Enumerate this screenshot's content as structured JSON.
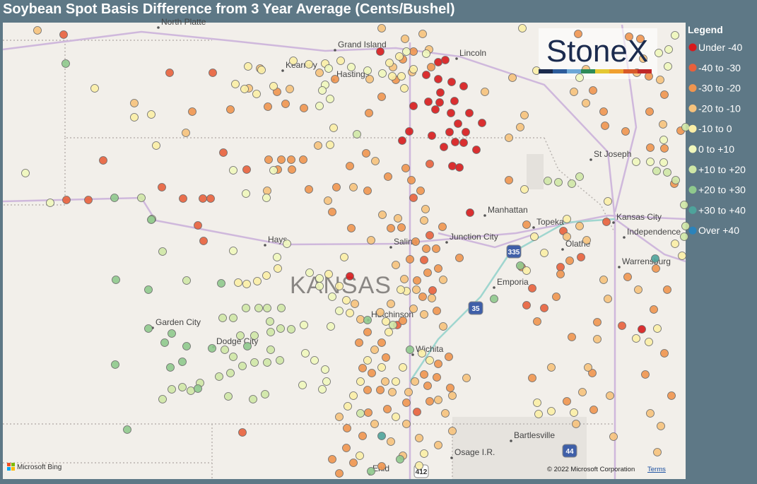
{
  "header": {
    "title": "Soybean Spot Basis Difference from 3 Year Average (Cents/Bushel)"
  },
  "legend": {
    "title": "Legend",
    "items": [
      {
        "label": "Under -40",
        "color": "#d7191c"
      },
      {
        "label": "-40 to -30",
        "color": "#e8603c"
      },
      {
        "label": "-30 to -20",
        "color": "#f0954f"
      },
      {
        "label": "-20 to -10",
        "color": "#f6c27c"
      },
      {
        "label": "-10 to 0",
        "color": "#fbeea6"
      },
      {
        "label": "0 to +10",
        "color": "#f0f7bc"
      },
      {
        "label": "+10 to +20",
        "color": "#cfe7a6"
      },
      {
        "label": "+20 to +30",
        "color": "#8fc98d"
      },
      {
        "label": "+30 to +40",
        "color": "#4ea39b"
      },
      {
        "label": "Over +40",
        "color": "#2b83ba"
      }
    ]
  },
  "logo": {
    "text": "StoneX"
  },
  "map": {
    "region_label": "KANSAS",
    "labels": [
      "North Platte",
      "Grand Island",
      "Kearney",
      "Hastings",
      "Lincoln",
      "St Joseph",
      "Manhattan",
      "Topeka",
      "Kansas City",
      "Independence",
      "Olathe",
      "Junction City",
      "Hays",
      "Salina",
      "Emporia",
      "Warrensburg",
      "Garden City",
      "Dodge City",
      "Hutchinson",
      "Wichita",
      "Bartlesville",
      "Osage I.R.",
      "Enid"
    ],
    "shields": [
      "335",
      "35",
      "44",
      "412"
    ]
  },
  "footer": {
    "provider": "Microsoft Bing",
    "copyright": "© 2022 Microsoft Corporation",
    "terms": "Terms"
  }
}
